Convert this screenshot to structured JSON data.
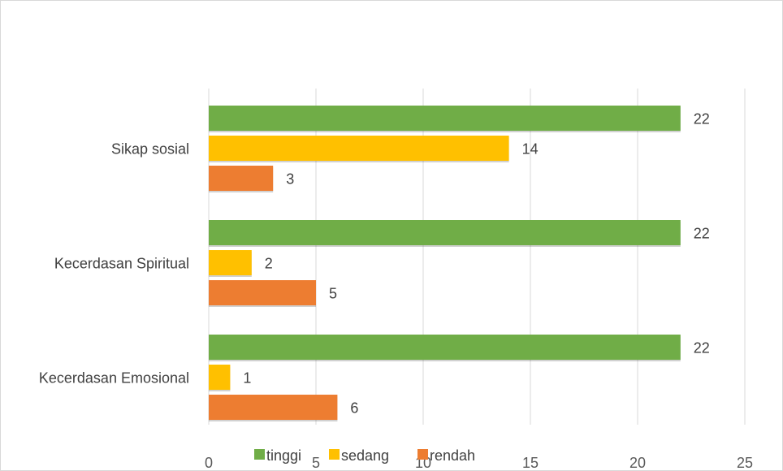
{
  "chart_data": {
    "type": "bar",
    "orientation": "horizontal",
    "categories": [
      "Sikap sosial",
      "Kecerdasan Spiritual",
      "Kecerdasan Emosional"
    ],
    "series": [
      {
        "name": "tinggi",
        "values": [
          22,
          22,
          22
        ],
        "color": "#70ad47"
      },
      {
        "name": "sedang",
        "values": [
          14,
          2,
          1
        ],
        "color": "#ffc000"
      },
      {
        "name": "rendah",
        "values": [
          3,
          5,
          6
        ],
        "color": "#ed7d31"
      }
    ],
    "xlim": [
      0,
      25
    ],
    "xticks": [
      "0",
      "5",
      "10",
      "15",
      "20",
      "25"
    ],
    "grid": true,
    "legend_position": "bottom",
    "data_labels": true
  }
}
